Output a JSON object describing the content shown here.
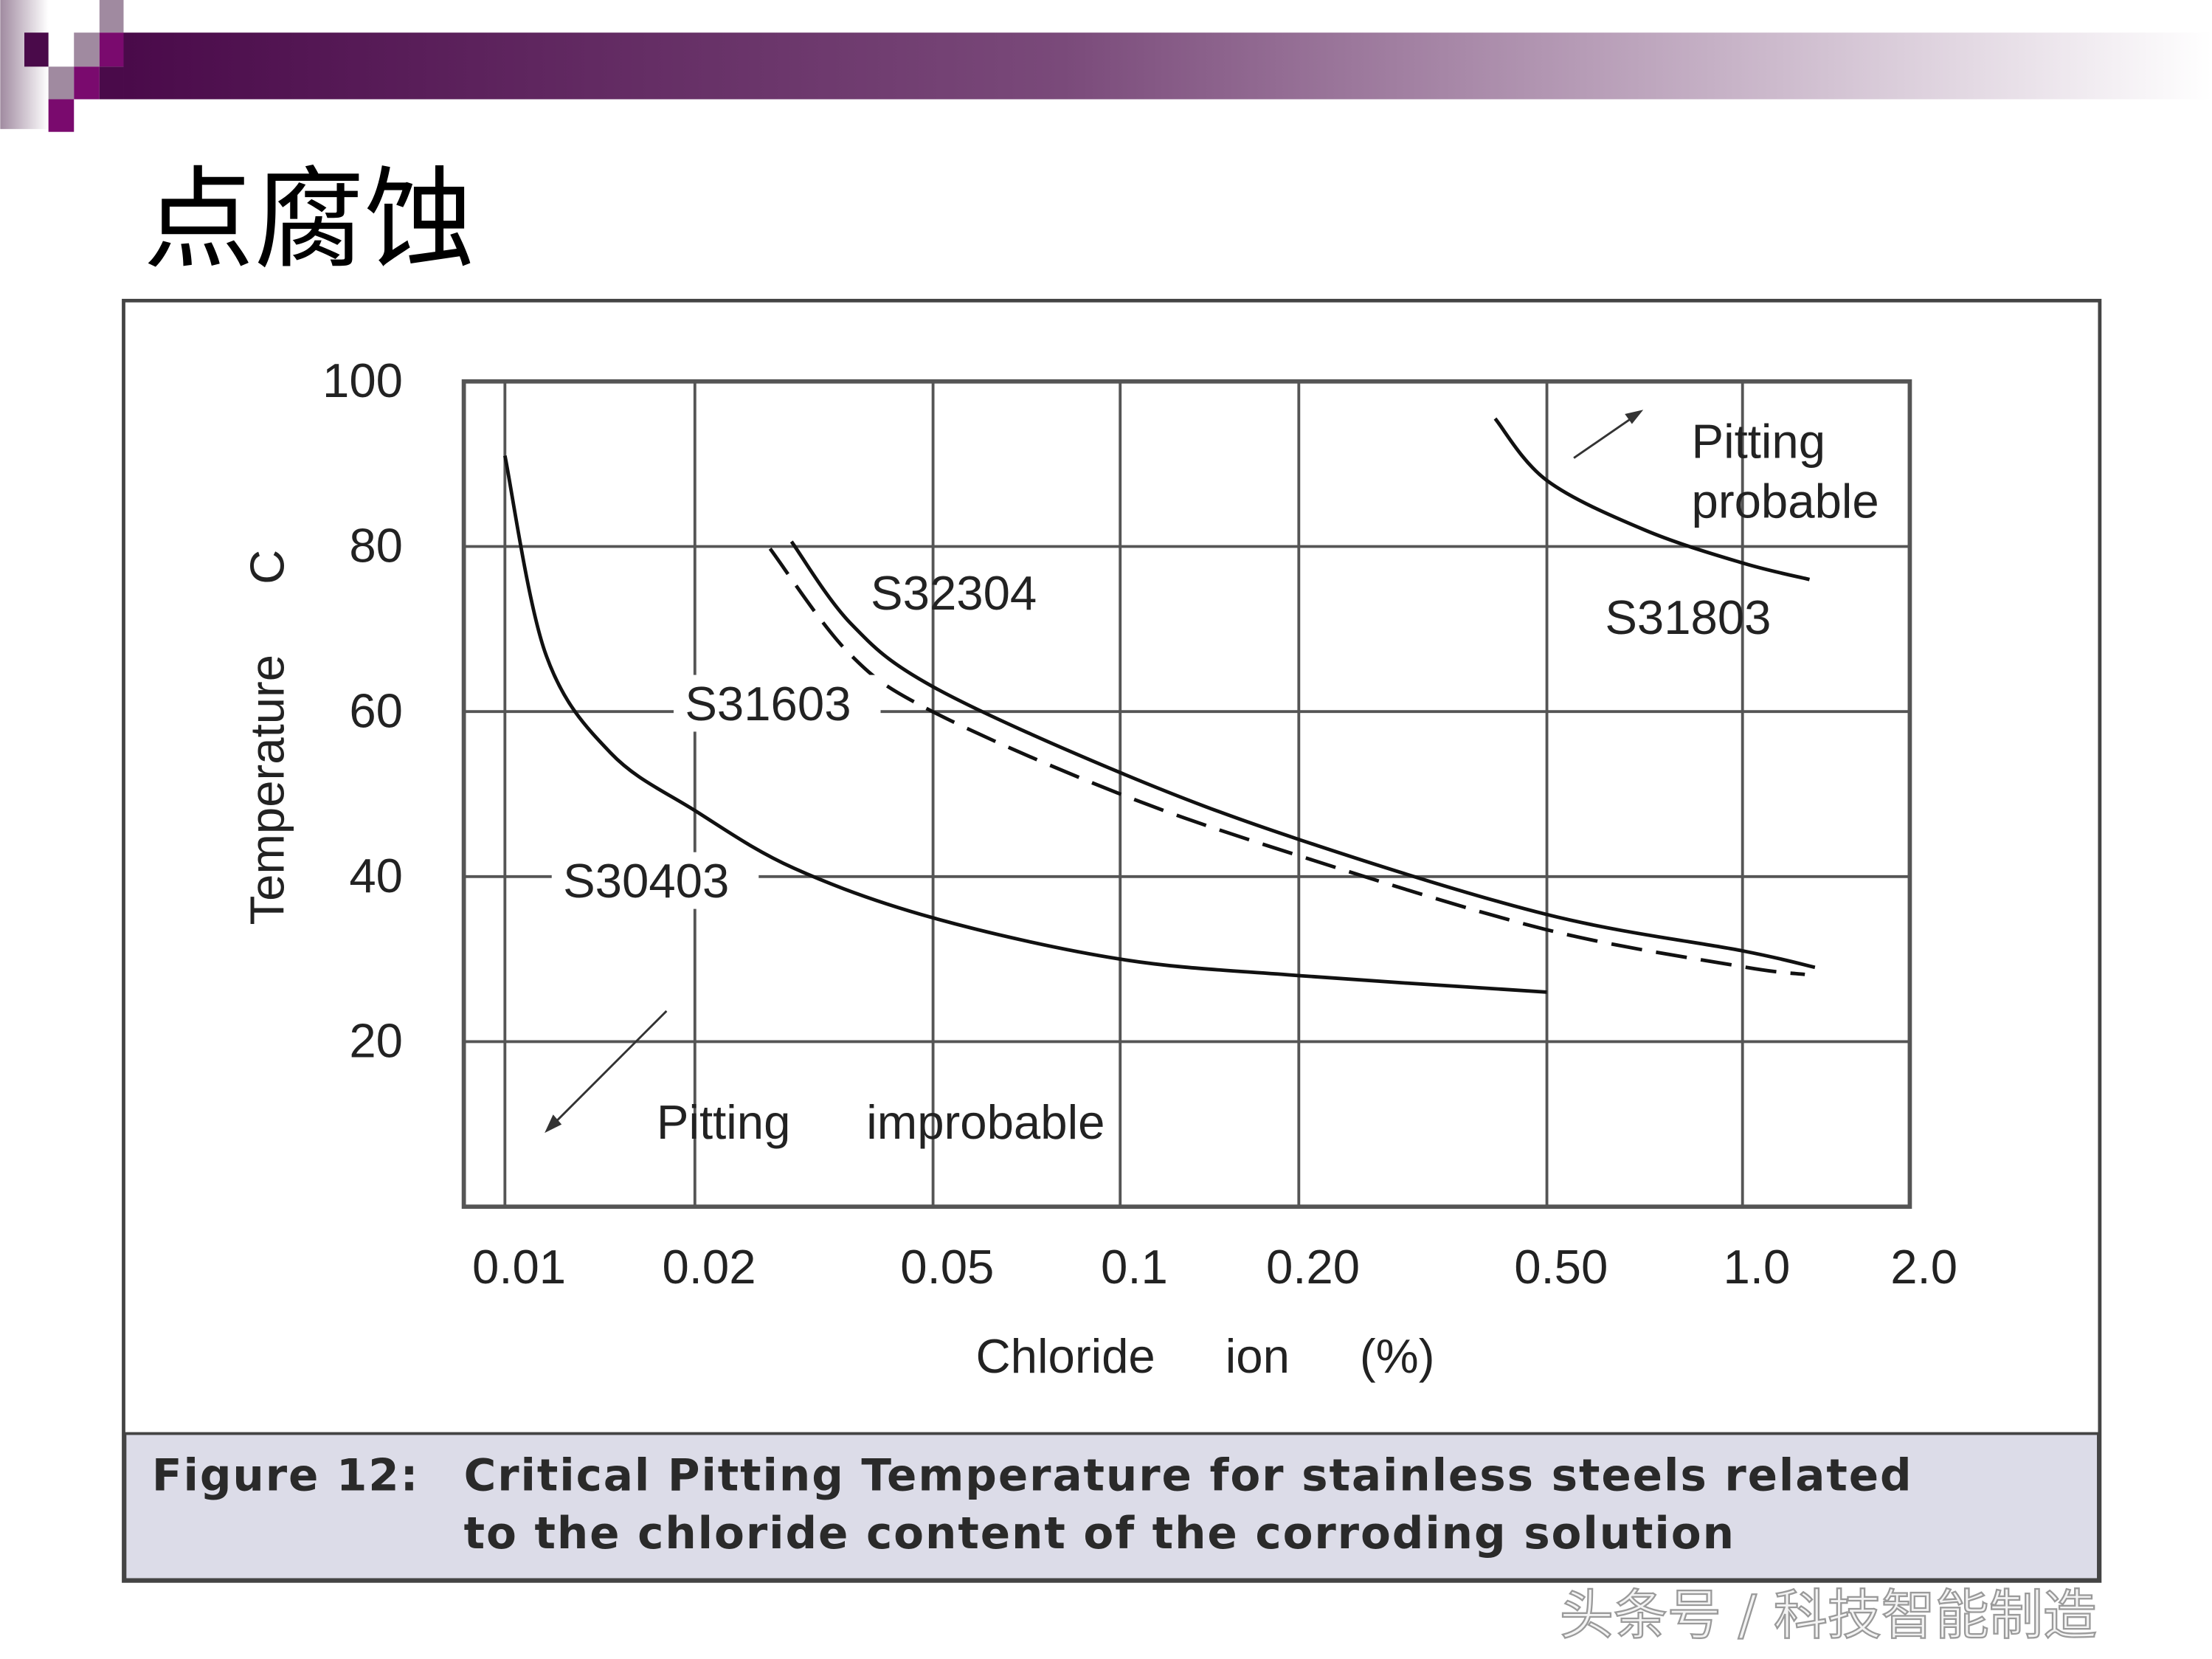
{
  "slide": {
    "title": "点腐蚀",
    "watermark": "头条号 / 科技智能制造",
    "accent_colors": {
      "dark_purple": "#4a0a4a",
      "magenta": "#7a0a6e",
      "light_purple": "#a08aa0"
    }
  },
  "figure": {
    "caption_label": "Figure 12:",
    "caption_line1": "Critical Pitting Temperature for stainless steels related",
    "caption_line2": "to the chloride content of the corroding solution",
    "caption_bg": "#dcdce8"
  },
  "chart_data": {
    "type": "line",
    "xlabel": "Chloride ion (%)",
    "ylabel": "Temperature C",
    "x_scale": "log-like (non-uniform)",
    "xticks": [
      "0.01",
      "0.02",
      "0.05",
      "0.1",
      "0.20",
      "0.50",
      "1.0",
      "2.0"
    ],
    "yticks": [
      "20",
      "40",
      "60",
      "80",
      "100"
    ],
    "xlim": [
      0.01,
      2.0
    ],
    "ylim": [
      0,
      100
    ],
    "grid": true,
    "series": [
      {
        "name": "S30403",
        "style": "solid",
        "x": [
          0.01,
          0.0116,
          0.0147,
          0.02,
          0.0293,
          0.05,
          0.1,
          0.2,
          0.5
        ],
        "y": [
          91,
          67,
          55,
          48,
          41,
          35,
          30,
          28,
          26
        ]
      },
      {
        "name": "S32304",
        "style": "solid",
        "x": [
          0.029,
          0.0365,
          0.05,
          0.1,
          0.2,
          0.5,
          1.0,
          1.35
        ],
        "y": [
          80.6,
          70.6,
          63,
          52.6,
          44.5,
          35.4,
          31,
          29
        ]
      },
      {
        "name": "S31603",
        "style": "dashed",
        "x": [
          0.027,
          0.0365,
          0.05,
          0.1,
          0.2,
          0.5,
          1.0,
          1.31
        ],
        "y": [
          80.6,
          68,
          61,
          51,
          43.5,
          34.5,
          30,
          29
        ]
      },
      {
        "name": "S31803",
        "style": "solid",
        "x": [
          0.413,
          0.5,
          0.707,
          1.0,
          1.32
        ],
        "y": [
          95.5,
          88,
          82,
          78,
          76
        ]
      }
    ],
    "annotations": {
      "improbable_1": "Pitting",
      "improbable_2": "improbable",
      "probable_1": "Pitting",
      "probable_2": "probable"
    }
  }
}
